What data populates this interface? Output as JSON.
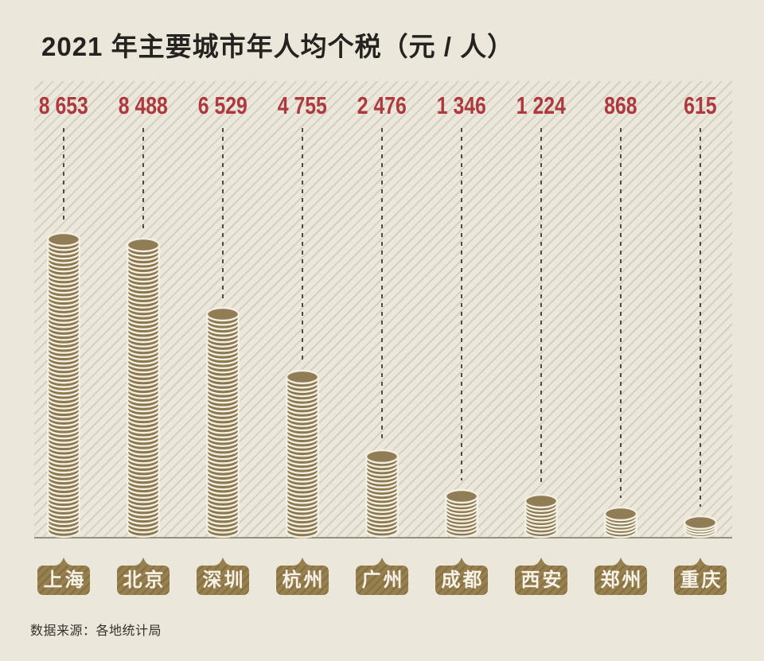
{
  "title": "2021 年主要城市年人均个税（元 / 人）",
  "source_note": "数据来源：各地统计局",
  "colors": {
    "background": "#ece7db",
    "stripe": "#d6d0c3",
    "value_red": "#ad383d",
    "coin_fill": "#8b784f",
    "coin_top_fill": "#907d55",
    "coin_rim": "#f3efe2",
    "label_box": "#97804f",
    "label_text": "#f6f2e7",
    "dash_line": "#4f4a42",
    "baseline": "#94907f",
    "title_color": "#242320",
    "source_color": "#34322e"
  },
  "chart_data": {
    "type": "bar",
    "bar_style": "coin-stack",
    "title": "2021 年主要城市年人均个税（元 / 人）",
    "unit": "元/人",
    "categories": [
      "上海",
      "北京",
      "深圳",
      "杭州",
      "广州",
      "成都",
      "西安",
      "郑州",
      "重庆"
    ],
    "values": [
      8653,
      8488,
      6529,
      4755,
      2476,
      1346,
      1224,
      868,
      615
    ],
    "value_labels": [
      "8 653",
      "8 488",
      "6 529",
      "4 755",
      "2 476",
      "1 346",
      "1 224",
      "868",
      "615"
    ],
    "ylim": [
      0,
      8700
    ],
    "grid": false,
    "legend": false,
    "source": "数据来源：各地统计局"
  }
}
